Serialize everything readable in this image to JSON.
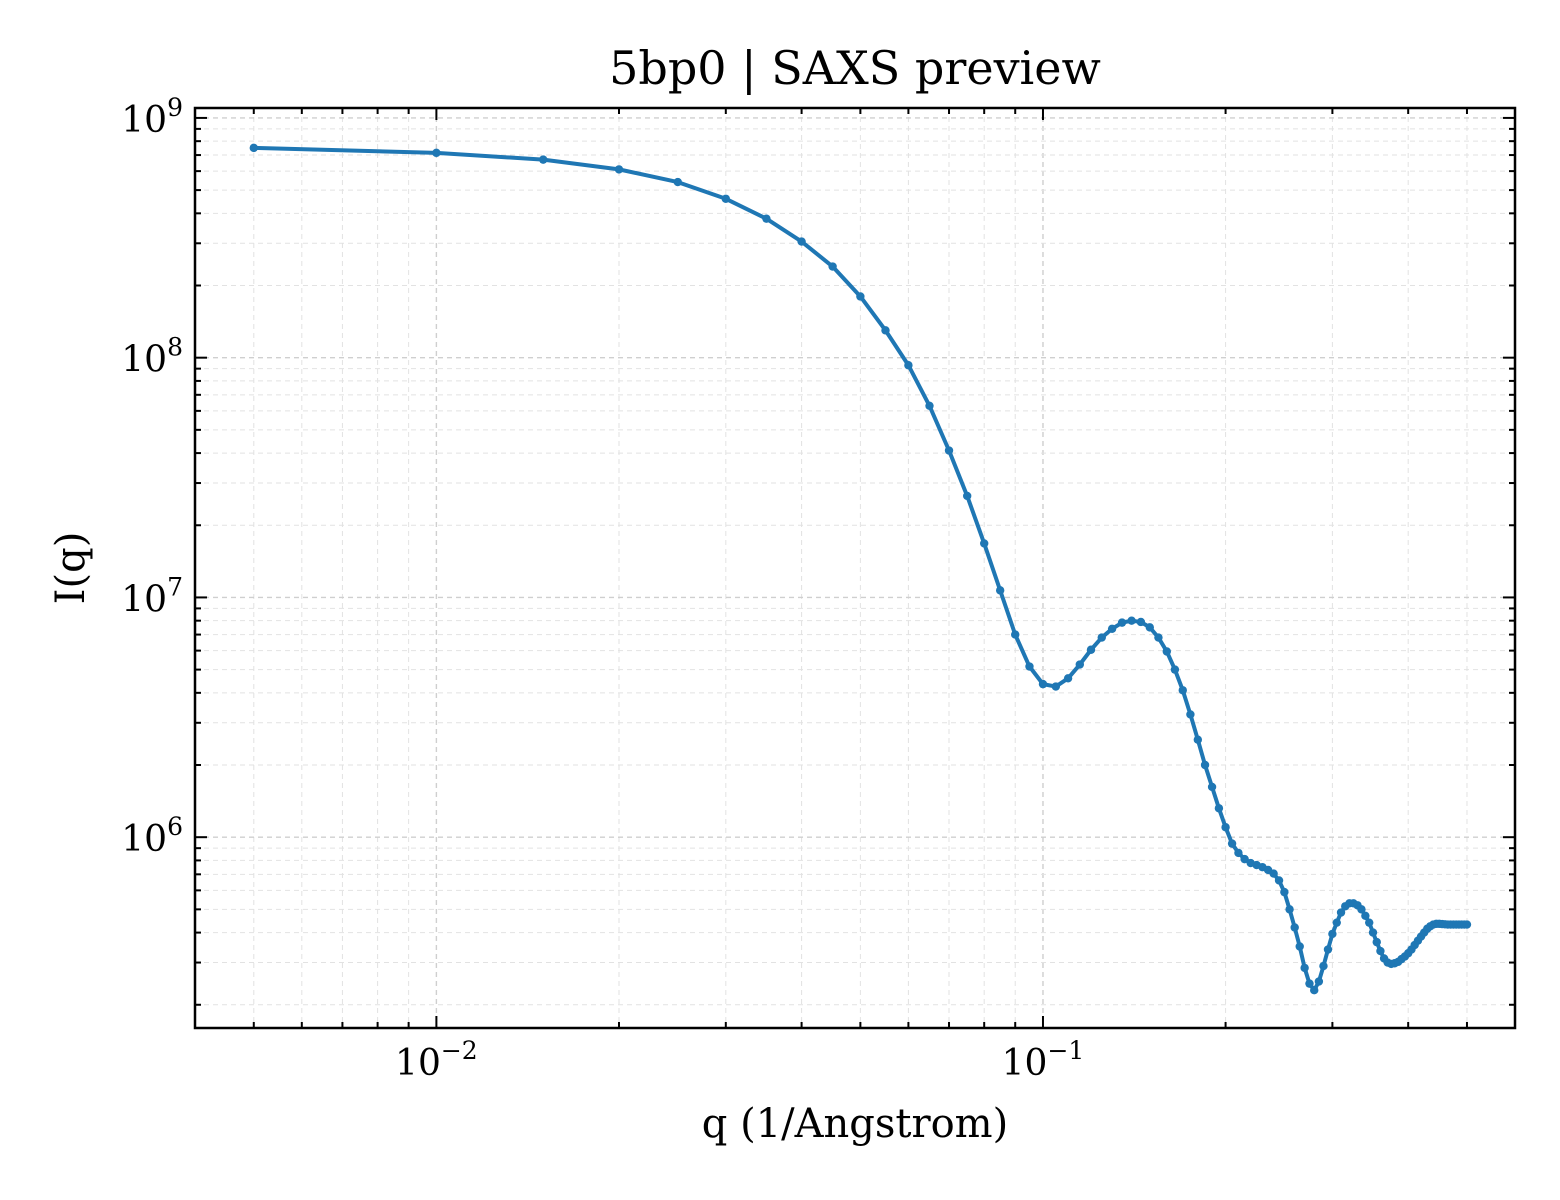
{
  "chart_data": {
    "type": "line",
    "title": "5bp0 | SAXS preview",
    "xlabel": "q (1/Angstrom)",
    "ylabel": "I(q)",
    "xscale": "log",
    "yscale": "log",
    "xlim": [
      0.004,
      0.6
    ],
    "ylim": [
      160000,
      1100000000
    ],
    "grid": true,
    "legend": "none",
    "x_ticks": [
      {
        "value": 0.01,
        "base": "10",
        "exp": "−2"
      },
      {
        "value": 0.1,
        "base": "10",
        "exp": "−1"
      }
    ],
    "y_ticks": [
      {
        "value": 1000000,
        "base": "10",
        "exp": "6"
      },
      {
        "value": 10000000,
        "base": "10",
        "exp": "7"
      },
      {
        "value": 100000000,
        "base": "10",
        "exp": "8"
      },
      {
        "value": 1000000000,
        "base": "10",
        "exp": "9"
      }
    ],
    "series": [
      {
        "color": "#1f77b4",
        "x": [
          0.005,
          0.01,
          0.015,
          0.02,
          0.025,
          0.03,
          0.035,
          0.04,
          0.045,
          0.05,
          0.055,
          0.06,
          0.065,
          0.07,
          0.075,
          0.08,
          0.085,
          0.09,
          0.095,
          0.1,
          0.105,
          0.11,
          0.115,
          0.12,
          0.125,
          0.13,
          0.135,
          0.14,
          0.145,
          0.15,
          0.155,
          0.16,
          0.165,
          0.17,
          0.175,
          0.18,
          0.185,
          0.19,
          0.195,
          0.2,
          0.205,
          0.21,
          0.215,
          0.22,
          0.225,
          0.23,
          0.235,
          0.24,
          0.245,
          0.25,
          0.255,
          0.26,
          0.265,
          0.27,
          0.275,
          0.28,
          0.285,
          0.29,
          0.295,
          0.3,
          0.305,
          0.31,
          0.315,
          0.32,
          0.325,
          0.33,
          0.335,
          0.34,
          0.345,
          0.35,
          0.355,
          0.36,
          0.365,
          0.37,
          0.375,
          0.38,
          0.385,
          0.39,
          0.395,
          0.4,
          0.405,
          0.41,
          0.415,
          0.42,
          0.425,
          0.43,
          0.435,
          0.44,
          0.445,
          0.45,
          0.455,
          0.46,
          0.465,
          0.47,
          0.475,
          0.48,
          0.485,
          0.49,
          0.495,
          0.5
        ],
        "y": [
          750000000,
          715000000,
          670000000,
          610000000,
          540000000,
          460000000,
          380000000,
          305000000,
          240000000,
          180000000,
          130000000,
          93000000,
          63000000,
          41000000,
          26500000,
          16800000,
          10700000,
          7000000,
          5150000,
          4350000,
          4250000,
          4600000,
          5250000,
          6050000,
          6800000,
          7400000,
          7850000,
          8000000,
          7900000,
          7500000,
          6800000,
          5950000,
          5000000,
          4100000,
          3250000,
          2550000,
          2000000,
          1620000,
          1320000,
          1100000,
          940000,
          860000,
          810000,
          780000,
          765000,
          750000,
          730000,
          705000,
          660000,
          590000,
          500000,
          420000,
          350000,
          285000,
          245000,
          230000,
          250000,
          290000,
          340000,
          395000,
          440000,
          485000,
          515000,
          530000,
          530000,
          520000,
          500000,
          470000,
          440000,
          400000,
          365000,
          335000,
          312000,
          300000,
          296000,
          298000,
          302000,
          310000,
          318000,
          328000,
          340000,
          355000,
          370000,
          385000,
          400000,
          415000,
          425000,
          432000,
          435000,
          435000,
          434000,
          433000,
          432000,
          432000,
          432000,
          432000,
          432000,
          432000,
          432000,
          432000
        ]
      }
    ]
  }
}
